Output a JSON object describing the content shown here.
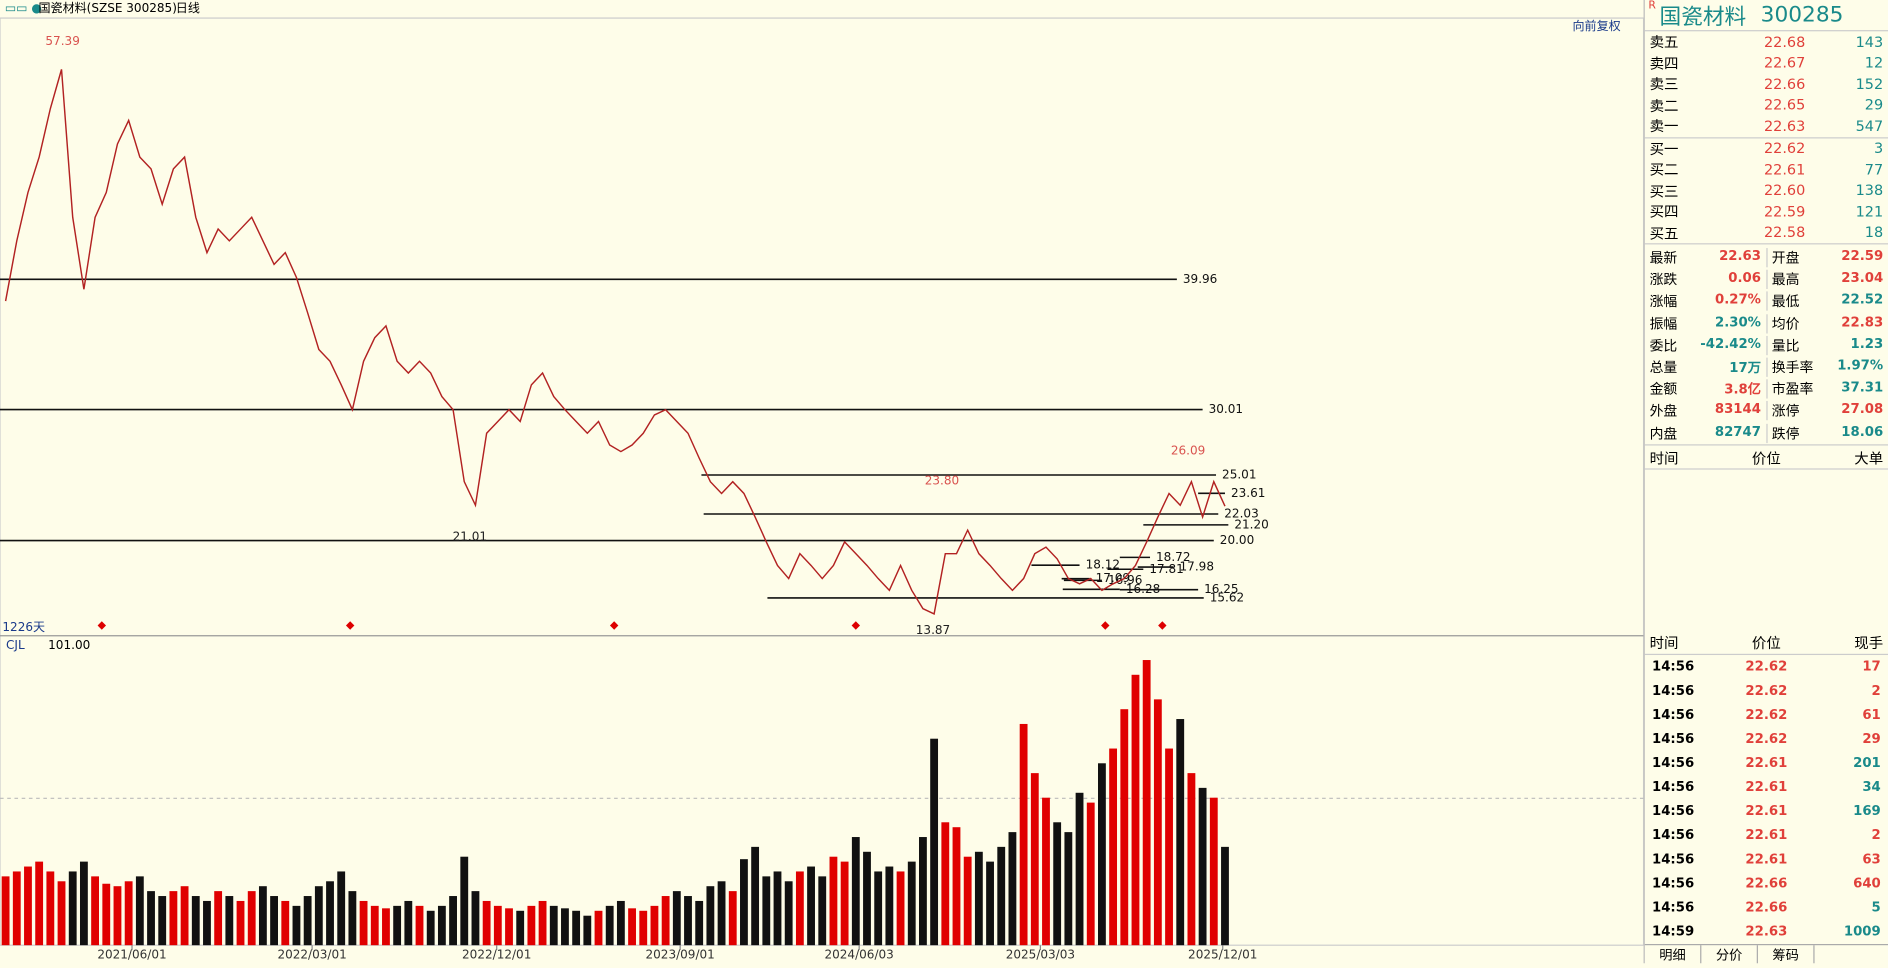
{
  "header": {
    "symbol": "国瓷材料(SZSE 300285)",
    "period": "日线",
    "adjust": "向前复权",
    "days": "1226天"
  },
  "chart_data": [
    {
      "type": "line",
      "ylim": [
        12.73,
        59.92
      ],
      "xlim": [
        -0.5,
        109.5
      ],
      "xticks": [
        {
          "value": 11.3,
          "label": "2021/06/01"
        },
        {
          "value": 27.4,
          "label": "2022/03/01"
        },
        {
          "value": 43.9,
          "label": "2022/12/01"
        },
        {
          "value": 60.3,
          "label": "2023/09/01"
        },
        {
          "value": 76.3,
          "label": "2024/06/03"
        },
        {
          "value": 92.5,
          "label": "2025/03/03"
        },
        {
          "value": 108.8,
          "label": "2025/12/01"
        }
      ],
      "series": [
        {
          "name": "国瓷材料",
          "color": "#b22222",
          "values": [
            38.3,
            42.9,
            46.6,
            49.3,
            53.0,
            56.0,
            44.7,
            39.2,
            44.7,
            46.6,
            50.3,
            52.1,
            49.3,
            48.4,
            45.7,
            48.4,
            49.3,
            44.7,
            42.0,
            43.8,
            42.9,
            43.8,
            44.7,
            42.9,
            41.1,
            42.0,
            40.1,
            37.4,
            34.6,
            33.7,
            31.9,
            30.0,
            33.7,
            35.5,
            36.4,
            33.7,
            32.8,
            33.7,
            32.8,
            31.0,
            30.0,
            24.5,
            22.7,
            28.2,
            29.1,
            30.0,
            29.1,
            31.9,
            32.8,
            31.0,
            30.0,
            29.1,
            28.2,
            29.1,
            27.3,
            26.8,
            27.3,
            28.2,
            29.6,
            30.0,
            29.1,
            28.2,
            26.3,
            24.5,
            23.6,
            24.5,
            23.6,
            21.8,
            19.9,
            18.1,
            17.1,
            19.0,
            18.1,
            17.1,
            18.1,
            19.9,
            19.0,
            18.1,
            17.1,
            16.2,
            18.1,
            16.2,
            14.8,
            14.4,
            19.0,
            19.0,
            20.8,
            19.0,
            18.1,
            17.1,
            16.2,
            17.1,
            19.0,
            19.5,
            18.6,
            17.1,
            16.7,
            17.1,
            16.2,
            16.7,
            17.1,
            18.1,
            19.9,
            21.8,
            23.6,
            22.7,
            24.5,
            21.8,
            24.5,
            22.63
          ]
        }
      ],
      "levels": [
        {
          "value": 39.96,
          "from": -0.5,
          "to": 104.7
        },
        {
          "value": 30.01,
          "from": -0.5,
          "to": 107
        },
        {
          "value": 25.01,
          "from": 62.2,
          "to": 108.2
        },
        {
          "value": 23.61,
          "from": 106.6,
          "to": 109
        },
        {
          "value": 22.03,
          "from": 62.4,
          "to": 108.4
        },
        {
          "value": 21.2,
          "label": "21.20",
          "from": 101.7,
          "to": 109.3
        },
        {
          "value": 20,
          "label": "20.00",
          "from": -0.5,
          "to": 108
        },
        {
          "value": 18.72,
          "from": 99.6,
          "to": 102.3
        },
        {
          "value": 18.12,
          "from": 91.7,
          "to": 96
        },
        {
          "value": 17.98,
          "from": 101.2,
          "to": 104.4
        },
        {
          "value": 17.81,
          "from": 98.5,
          "to": 101.7
        },
        {
          "value": 17.09,
          "from": 94.4,
          "to": 96.9
        },
        {
          "value": 16.96,
          "from": 94.6,
          "to": 98
        },
        {
          "value": 16.28,
          "from": 94.5,
          "to": 99.6
        },
        {
          "value": 16.25,
          "from": 99.6,
          "to": 106.6
        },
        {
          "value": 15.62,
          "from": 68.1,
          "to": 107.1
        }
      ],
      "annotations": [
        {
          "value": 57.39,
          "x": 5.1,
          "color": "#d9534f",
          "side": "above"
        },
        {
          "value": 21.01,
          "x": 41.5,
          "color": "#222222",
          "side": "below"
        },
        {
          "value": 23.8,
          "label": "23.80",
          "x": 83.7,
          "color": "#d9534f",
          "side": "above"
        },
        {
          "value": 26.09,
          "x": 105.7,
          "color": "#d9534f",
          "side": "above"
        },
        {
          "value": 13.87,
          "x": 82.9,
          "color": "#222222",
          "side": "below"
        }
      ],
      "markers": [
        8.6,
        30.8,
        54.4,
        76,
        98.3,
        103.4
      ]
    },
    {
      "type": "bar",
      "indicator": "CJL",
      "indicator_value": "101.00",
      "ylim": [
        0,
        120
      ],
      "xlim": [
        -0.5,
        109.5
      ],
      "up_color": "#e00000",
      "down_color": "#111111",
      "values": [
        28,
        30,
        32,
        34,
        30,
        26,
        30,
        34,
        28,
        25,
        24,
        26,
        28,
        22,
        20,
        22,
        24,
        20,
        18,
        22,
        20,
        18,
        22,
        24,
        20,
        18,
        16,
        20,
        24,
        26,
        30,
        22,
        18,
        16,
        15,
        16,
        18,
        16,
        14,
        16,
        20,
        36,
        22,
        18,
        16,
        15,
        14,
        16,
        18,
        16,
        15,
        14,
        12,
        14,
        16,
        18,
        15,
        14,
        16,
        20,
        22,
        20,
        18,
        24,
        26,
        22,
        35,
        40,
        28,
        30,
        26,
        30,
        32,
        28,
        36,
        34,
        44,
        38,
        30,
        32,
        30,
        34,
        44,
        84,
        50,
        48,
        36,
        38,
        34,
        40,
        46,
        90,
        70,
        60,
        50,
        46,
        62,
        58,
        74,
        80,
        96,
        110,
        116,
        100,
        80,
        92,
        70,
        64,
        60,
        40
      ]
    }
  ],
  "side": {
    "flag": "R",
    "name": "国瓷材料",
    "code": "300285",
    "sell": [
      {
        "label": "卖五",
        "price": "22.68",
        "volume": "143"
      },
      {
        "label": "卖四",
        "price": "22.67",
        "volume": "12"
      },
      {
        "label": "卖三",
        "price": "22.66",
        "volume": "152"
      },
      {
        "label": "卖二",
        "price": "22.65",
        "volume": "29"
      },
      {
        "label": "卖一",
        "price": "22.63",
        "volume": "547"
      }
    ],
    "buy": [
      {
        "label": "买一",
        "price": "22.62",
        "volume": "3"
      },
      {
        "label": "买二",
        "price": "22.61",
        "volume": "77"
      },
      {
        "label": "买三",
        "price": "22.60",
        "volume": "138"
      },
      {
        "label": "买四",
        "price": "22.59",
        "volume": "121"
      },
      {
        "label": "买五",
        "price": "22.58",
        "volume": "18"
      }
    ],
    "stats": [
      [
        {
          "label": "最新",
          "value": "22.63",
          "color": "red"
        },
        {
          "label": "开盘",
          "value": "22.59",
          "color": "red"
        }
      ],
      [
        {
          "label": "涨跌",
          "value": "0.06",
          "color": "red"
        },
        {
          "label": "最高",
          "value": "23.04",
          "color": "red"
        }
      ],
      [
        {
          "label": "涨幅",
          "value": "0.27%",
          "color": "red"
        },
        {
          "label": "最低",
          "value": "22.52",
          "color": "teal"
        }
      ],
      [
        {
          "label": "振幅",
          "value": "2.30%",
          "color": "teal"
        },
        {
          "label": "均价",
          "value": "22.83",
          "color": "red"
        }
      ],
      [
        {
          "label": "委比",
          "value": "-42.42%",
          "color": "teal"
        },
        {
          "label": "量比",
          "value": "1.23",
          "color": "teal"
        }
      ],
      [
        {
          "label": "总量",
          "value": "17万",
          "color": "teal"
        },
        {
          "label": "换手率",
          "value": "1.97%",
          "color": "teal"
        }
      ],
      [
        {
          "label": "金额",
          "value": "3.8亿",
          "color": "red"
        },
        {
          "label": "市盈率",
          "value": "37.31",
          "color": "teal"
        }
      ],
      [
        {
          "label": "外盘",
          "value": "83144",
          "color": "red"
        },
        {
          "label": "涨停",
          "value": "27.08",
          "color": "red"
        }
      ],
      [
        {
          "label": "内盘",
          "value": "82747",
          "color": "teal"
        },
        {
          "label": "跌停",
          "value": "18.06",
          "color": "teal"
        }
      ]
    ],
    "big_header": [
      "时间",
      "价位",
      "大单"
    ],
    "trade_header": [
      "时间",
      "价位",
      "现手"
    ],
    "trades": [
      {
        "time": "14:56",
        "price": "22.62",
        "volume": "17",
        "color": "red"
      },
      {
        "time": "14:56",
        "price": "22.62",
        "volume": "2",
        "color": "red"
      },
      {
        "time": "14:56",
        "price": "22.62",
        "volume": "61",
        "color": "red"
      },
      {
        "time": "14:56",
        "price": "22.62",
        "volume": "29",
        "color": "red"
      },
      {
        "time": "14:56",
        "price": "22.61",
        "volume": "201",
        "color": "teal"
      },
      {
        "time": "14:56",
        "price": "22.61",
        "volume": "34",
        "color": "teal"
      },
      {
        "time": "14:56",
        "price": "22.61",
        "volume": "169",
        "color": "teal"
      },
      {
        "time": "14:56",
        "price": "22.61",
        "volume": "2",
        "color": "red"
      },
      {
        "time": "14:56",
        "price": "22.61",
        "volume": "63",
        "color": "red"
      },
      {
        "time": "14:56",
        "price": "22.66",
        "volume": "640",
        "color": "red"
      },
      {
        "time": "14:56",
        "price": "22.66",
        "volume": "5",
        "color": "teal"
      },
      {
        "time": "14:59",
        "price": "22.63",
        "volume": "1009",
        "color": "teal"
      }
    ],
    "tabs": [
      "明细",
      "分价",
      "筹码"
    ]
  }
}
